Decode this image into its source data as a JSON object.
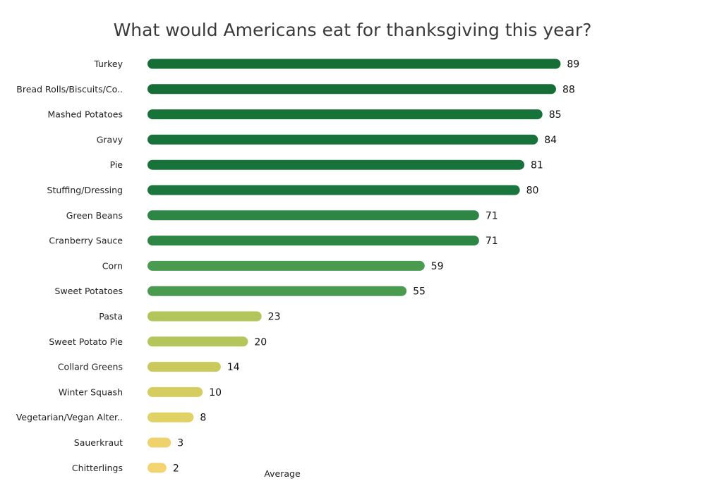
{
  "chart_data": {
    "type": "bar",
    "orientation": "horizontal",
    "title": "What would Americans eat for thanksgiving this year?",
    "xlabel": "Average",
    "ylabel": "",
    "xlim": [
      0,
      100
    ],
    "grid": false,
    "legend": "none",
    "categories": [
      "Turkey",
      "Bread Rolls/Biscuits/Co..",
      "Mashed Potatoes",
      "Gravy",
      "Pie",
      "Stuffing/Dressing",
      "Green Beans",
      "Cranberry Sauce",
      "Corn",
      "Sweet Potatoes",
      "Pasta",
      "Sweet Potato Pie",
      "Collard Greens",
      "Winter Squash",
      "Vegetarian/Vegan Alter..",
      "Sauerkraut",
      "Chitterlings"
    ],
    "values": [
      89,
      88,
      85,
      84,
      81,
      80,
      71,
      71,
      59,
      55,
      23,
      20,
      14,
      10,
      8,
      3,
      2
    ],
    "bar_colors": [
      "#166e37",
      "#166e37",
      "#18733a",
      "#18733a",
      "#18733a",
      "#1a763c",
      "#2e8645",
      "#2e8645",
      "#4a9a4f",
      "#4a9a4f",
      "#b1c55a",
      "#b4c55c",
      "#c9c95c",
      "#d6cd60",
      "#e0d265",
      "#f0d26c",
      "#f4d470"
    ]
  }
}
